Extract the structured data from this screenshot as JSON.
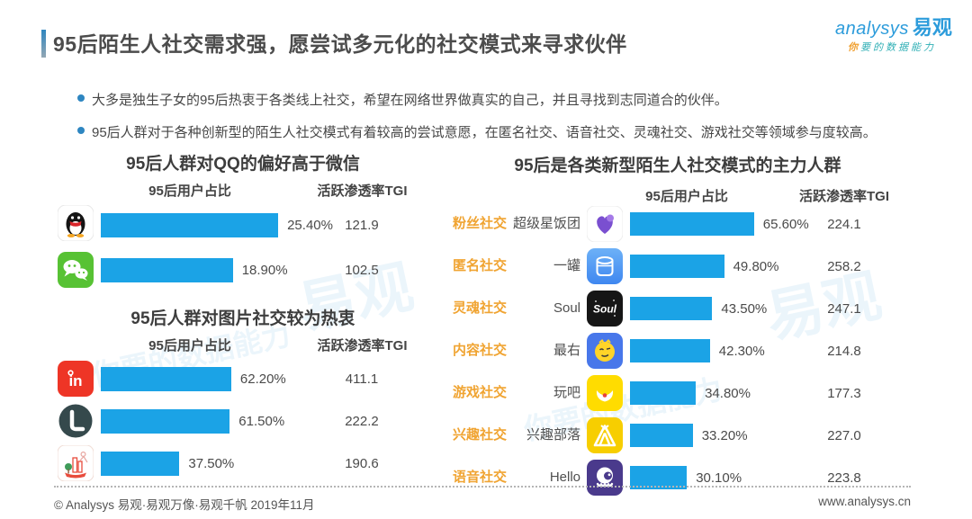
{
  "page": {
    "title": "95后陌生人社交需求强，愿尝试多元化的社交模式来寻求伙伴",
    "logo": {
      "brand": "analysys",
      "brand_cn": "易观",
      "tagline_highlight": "你",
      "tagline_rest": "要的数据能力"
    },
    "bullets": [
      "大多是独生子女的95后热衷于各类线上社交，希望在网络世界做真实的自己，并且寻找到志同道合的伙伴。",
      "95后人群对于各种创新型的陌生人社交模式有着较高的尝试意愿，在匿名社交、语音社交、灵魂社交、游戏社交等领域参与度较高。"
    ],
    "footer": {
      "left": "© Analysys 易观·易观万像·易观千帆 2019年11月",
      "right": "www.analysys.cn"
    },
    "watermark_cn": "易观",
    "watermark_tagline": "你要的数据能力"
  },
  "colors": {
    "bar_blue": "#1BA3E6",
    "category_orange": "#F0A432",
    "logo_blue": "#2D9CDB",
    "tagline_teal": "#2FAFB5",
    "bullet_blue": "#2E86C1"
  },
  "chart_data": [
    {
      "type": "bar",
      "title": "95后人群对QQ的偏好高于微信",
      "columns": [
        "95后用户占比",
        "活跃渗透率TGI"
      ],
      "xlim": [
        0,
        30
      ],
      "rows": [
        {
          "icon": "qq",
          "share": 25.4,
          "share_label": "25.40%",
          "tgi": 121.9,
          "tgi_label": "121.9"
        },
        {
          "icon": "wechat",
          "share": 18.9,
          "share_label": "18.90%",
          "tgi": 102.5,
          "tgi_label": "102.5"
        }
      ]
    },
    {
      "type": "bar",
      "title": "95后人群对图片社交较为热衷",
      "columns": [
        "95后用户占比",
        "活跃渗透率TGI"
      ],
      "xlim": [
        0,
        75
      ],
      "rows": [
        {
          "icon": "in-app",
          "share": 62.2,
          "share_label": "62.20%",
          "tgi": 411.1,
          "tgi_label": "411.1"
        },
        {
          "icon": "lofter",
          "share": 61.5,
          "share_label": "61.50%",
          "tgi": 222.2,
          "tgi_label": "222.2"
        },
        {
          "icon": "city-illustration",
          "share": 37.5,
          "share_label": "37.50%",
          "tgi": 190.6,
          "tgi_label": "190.6"
        }
      ]
    },
    {
      "type": "bar",
      "title": "95后是各类新型陌生人社交模式的主力人群",
      "columns": [
        "95后用户占比",
        "活跃渗透率TGI"
      ],
      "xlim": [
        0,
        100
      ],
      "rows": [
        {
          "category": "粉丝社交",
          "app": "超级星饭团",
          "icon": "purple-heart",
          "share": 65.6,
          "share_label": "65.60%",
          "tgi": 224.1,
          "tgi_label": "224.1"
        },
        {
          "category": "匿名社交",
          "app": "一罐",
          "icon": "jar",
          "share": 49.8,
          "share_label": "49.80%",
          "tgi": 258.2,
          "tgi_label": "258.2"
        },
        {
          "category": "灵魂社交",
          "app": "Soul",
          "icon": "soul",
          "share": 43.5,
          "share_label": "43.50%",
          "tgi": 247.1,
          "tgi_label": "247.1"
        },
        {
          "category": "内容社交",
          "app": "最右",
          "icon": "zuiyou-face",
          "share": 42.3,
          "share_label": "42.30%",
          "tgi": 214.8,
          "tgi_label": "214.8"
        },
        {
          "category": "游戏社交",
          "app": "玩吧",
          "icon": "wanba-smile",
          "share": 34.8,
          "share_label": "34.80%",
          "tgi": 177.3,
          "tgi_label": "177.3"
        },
        {
          "category": "兴趣社交",
          "app": "兴趣部落",
          "icon": "tent",
          "share": 33.2,
          "share_label": "33.20%",
          "tgi": 227.0,
          "tgi_label": "227.0"
        },
        {
          "category": "语音社交",
          "app": "Hello",
          "icon": "octopus",
          "share": 30.1,
          "share_label": "30.10%",
          "tgi": 223.8,
          "tgi_label": "223.8"
        }
      ]
    }
  ]
}
